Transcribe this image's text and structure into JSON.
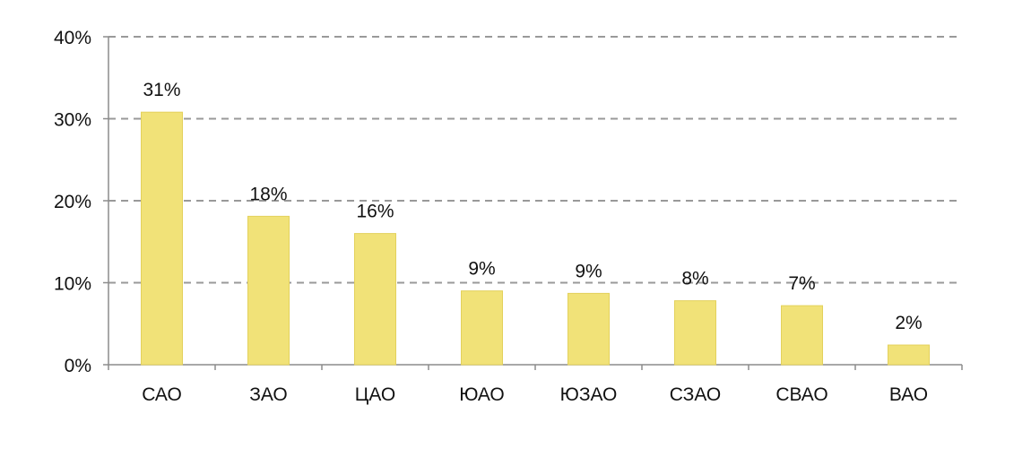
{
  "chart_data": {
    "type": "bar",
    "categories": [
      "САО",
      "ЗАО",
      "ЦАО",
      "ЮАО",
      "ЮЗАО",
      "СЗАО",
      "СВАО",
      "ВАО"
    ],
    "values": [
      31,
      18,
      16,
      9,
      9,
      8,
      7,
      2
    ],
    "value_labels": [
      "31%",
      "18%",
      "16%",
      "9%",
      "9%",
      "8%",
      "7%",
      "2%"
    ],
    "bar_heights_pct": [
      30.8,
      18.1,
      16.0,
      9.0,
      8.7,
      7.8,
      7.2,
      2.4
    ],
    "y_ticks": [
      "0%",
      "10%",
      "20%",
      "30%",
      "40%"
    ],
    "y_tick_values": [
      0,
      10,
      20,
      30,
      40
    ],
    "ylim": [
      0,
      40
    ],
    "grid": true,
    "grid_style": "dashed",
    "legend": false,
    "colors": {
      "bar": "#F1E278",
      "bar_edge": "#E3D15C",
      "grid": "#999999",
      "axis": "#8c8c8c",
      "text": "#111111"
    }
  }
}
